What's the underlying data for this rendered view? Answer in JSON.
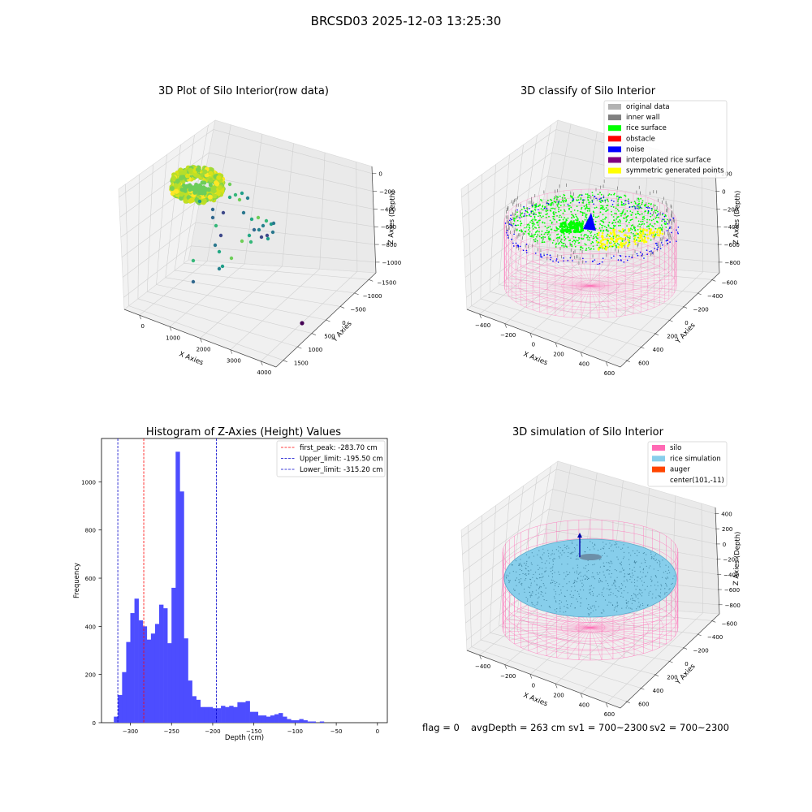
{
  "figure_title": "BRCSD03 2025-12-03 13:25:30",
  "footer": {
    "flag": "flag = 0",
    "avg_depth": "avgDepth = 263 cm",
    "sv1": "sv1 = 700~2300",
    "sv2": "sv2 = 700~2300"
  },
  "chart_data": [
    {
      "type": "scatter",
      "projection": "3d",
      "title": "3D Plot of Silo Interior(row data)",
      "xlabel": "X Axies",
      "ylabel": "Y Axies",
      "zlabel": "Z Axies (Depth)",
      "x_ticks": [
        "0",
        "1000",
        "2000",
        "3000",
        "4000"
      ],
      "y_ticks": [
        "1500",
        "1000",
        "500",
        "0",
        "−500",
        "−1000",
        "−1500"
      ],
      "z_ticks": [
        "0",
        "−200",
        "−400",
        "−600",
        "−800",
        "−1000"
      ],
      "colormap": "viridis"
    },
    {
      "type": "scatter",
      "projection": "3d",
      "title": "3D classify of Silo Interior",
      "xlabel": "X Axies",
      "ylabel": "Y Axies",
      "zlabel": "Z Axies (Depth)",
      "x_ticks": [
        "−400",
        "−200",
        "0",
        "200",
        "400",
        "600"
      ],
      "y_ticks": [
        "600",
        "400",
        "200",
        "0",
        "−200",
        "−400",
        "−600"
      ],
      "z_ticks": [
        "200",
        "0",
        "−200",
        "−400",
        "−600",
        "−800"
      ],
      "legend": [
        {
          "label": "original data",
          "color": "#b3b3b3"
        },
        {
          "label": "inner wall",
          "color": "#808080"
        },
        {
          "label": "rice surface",
          "color": "#00ff00"
        },
        {
          "label": "obstacle",
          "color": "#ff0000"
        },
        {
          "label": "noise",
          "color": "#0000ff"
        },
        {
          "label": "interpolated rice surface",
          "color": "#800080"
        },
        {
          "label": "symmetric generated points",
          "color": "#ffff00"
        }
      ],
      "legend_position": "top-right"
    },
    {
      "type": "bar",
      "title": "Histogram of Z-Axies (Height) Values",
      "xlabel": "Depth (cm)",
      "ylabel": "Frequency",
      "xlim": [
        -335,
        12
      ],
      "ylim": [
        0,
        1180
      ],
      "x_ticks": [
        -300,
        -250,
        -200,
        -150,
        -100,
        -50,
        0
      ],
      "y_ticks": [
        0,
        200,
        400,
        600,
        800,
        1000
      ],
      "bin_start": -320,
      "bin_width": 5,
      "values": [
        25,
        115,
        210,
        335,
        455,
        515,
        425,
        400,
        345,
        370,
        410,
        490,
        475,
        330,
        560,
        1125,
        960,
        350,
        175,
        110,
        95,
        65,
        65,
        65,
        60,
        60,
        70,
        65,
        70,
        65,
        85,
        85,
        90,
        45,
        45,
        30,
        30,
        25,
        30,
        35,
        40,
        25,
        15,
        10,
        10,
        15,
        10,
        5,
        5,
        0,
        5
      ],
      "bar_color": "#4d4dff",
      "vlines": [
        {
          "label": "first_peak: -283.70 cm",
          "x": -283.7,
          "color": "#ff0000"
        },
        {
          "label": "Upper_limit: -195.50 cm",
          "x": -195.5,
          "color": "#0000cc"
        },
        {
          "label": "Lower_limit: -315.20 cm",
          "x": -315.2,
          "color": "#0000cc"
        }
      ],
      "legend_position": "top-right"
    },
    {
      "type": "surface",
      "projection": "3d",
      "title": "3D simulation of Silo Interior",
      "xlabel": "X Axies",
      "ylabel": "Y Axies",
      "zlabel": "Z Axies (Depth)",
      "x_ticks": [
        "−400",
        "−200",
        "0",
        "200",
        "400",
        "600"
      ],
      "y_ticks": [
        "600",
        "400",
        "200",
        "0",
        "−200",
        "−400",
        "−600"
      ],
      "z_ticks": [
        "400",
        "200",
        "0",
        "−200",
        "−400",
        "−600",
        "−800"
      ],
      "legend": [
        {
          "label": "silo",
          "color": "#ff69b4"
        },
        {
          "label": "rice simulation",
          "color": "#87ceeb"
        },
        {
          "label": "auger",
          "color": "#ff4500"
        },
        {
          "label": "center(101,-11)",
          "color": ""
        }
      ],
      "legend_position": "top-right"
    }
  ]
}
